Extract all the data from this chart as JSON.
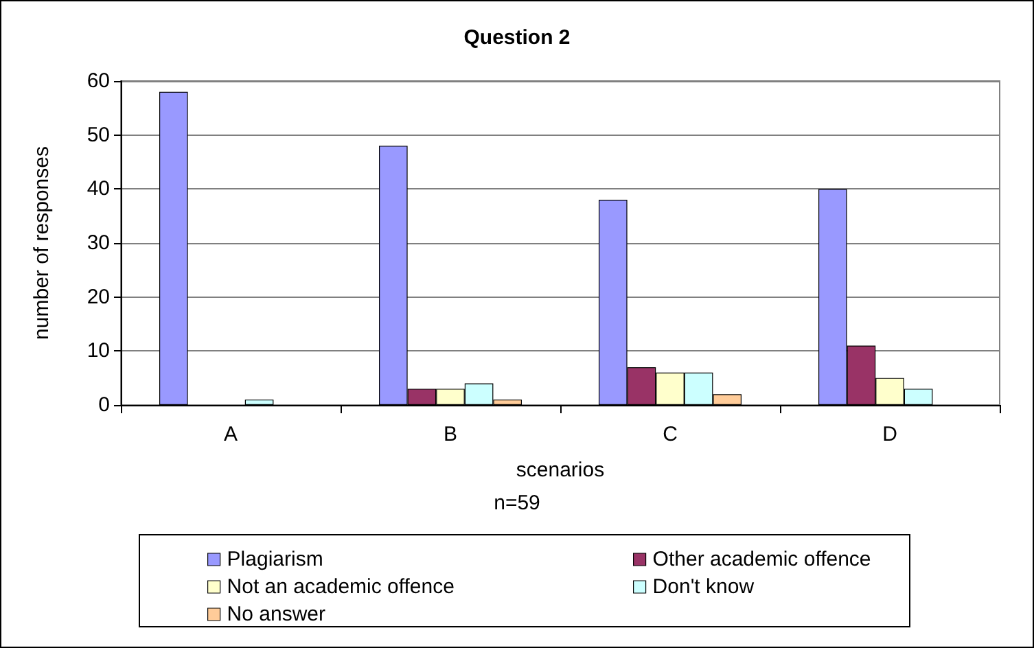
{
  "chart_data": {
    "type": "bar",
    "title": "Question 2",
    "xlabel": "scenarios",
    "ylabel": "number of responses",
    "annotations": [
      "n=59"
    ],
    "categories": [
      "A",
      "B",
      "C",
      "D"
    ],
    "series": [
      {
        "name": "Plagiarism",
        "color": "#9999ff",
        "values": [
          58,
          48,
          38,
          40
        ]
      },
      {
        "name": "Other academic offence",
        "color": "#993366",
        "values": [
          0,
          3,
          7,
          11
        ]
      },
      {
        "name": "Not an academic offence",
        "color": "#ffffcc",
        "values": [
          0,
          3,
          6,
          5
        ]
      },
      {
        "name": "Don't know",
        "color": "#ccffff",
        "values": [
          1,
          4,
          6,
          3
        ]
      },
      {
        "name": "No answer",
        "color": "#ffcc99",
        "values": [
          0,
          1,
          2,
          0
        ]
      }
    ],
    "ylim": [
      0,
      60
    ],
    "yticks": [
      0,
      10,
      20,
      30,
      40,
      50,
      60
    ],
    "grid": "y",
    "legend": "bottom"
  }
}
